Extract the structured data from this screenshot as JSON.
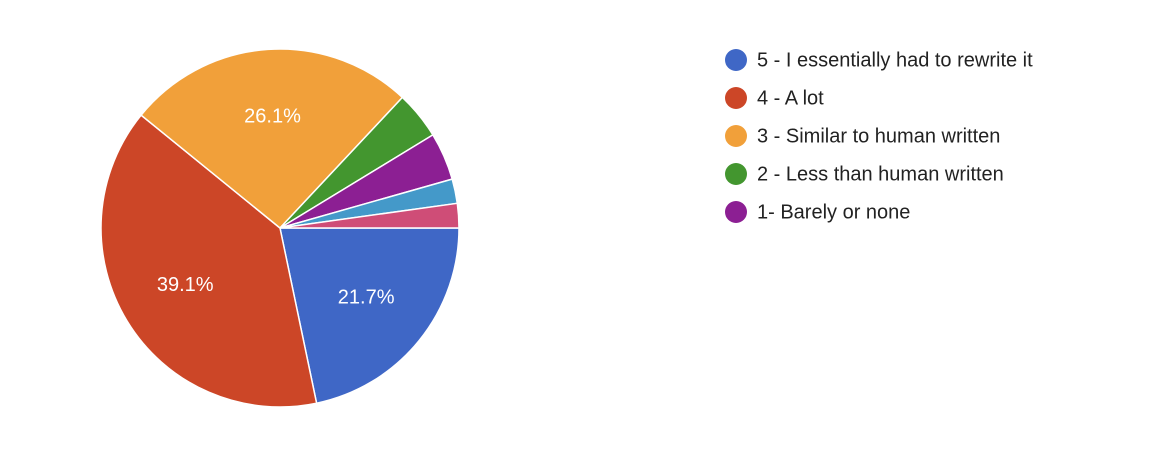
{
  "chart_data": {
    "type": "pie",
    "categories": [
      "5 - I essentially had to rewrite it",
      "4 - A lot",
      "3 - Similar to human written",
      "2 - Less than human written",
      "1- Barely or none",
      null,
      null
    ],
    "values": [
      21.7,
      39.1,
      26.1,
      4.3,
      4.3,
      2.2,
      2.2
    ],
    "value_labels": [
      "21.7%",
      "39.1%",
      "26.1%",
      null,
      null,
      null,
      null
    ],
    "colors": [
      "#3f67c6",
      "#cc4627",
      "#f1a03a",
      "#43962f",
      "#8c1f93",
      "#4499c9",
      "#cf4d77"
    ],
    "legend": "right"
  }
}
